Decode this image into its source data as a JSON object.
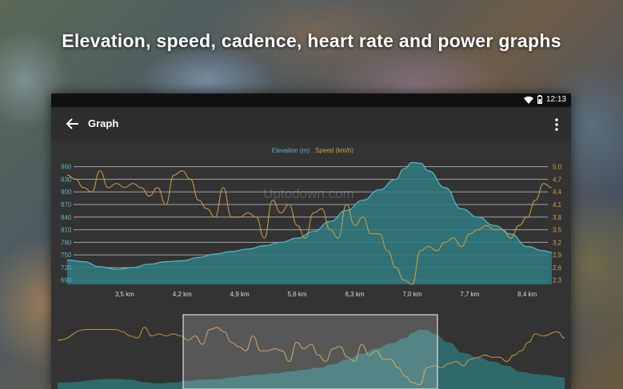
{
  "headline": "Elevation, speed, cadence, heart rate and power graphs",
  "status": {
    "time": "12:13"
  },
  "appbar": {
    "title": "Graph"
  },
  "watermark": "Uptodown.com",
  "colors": {
    "elevation": "#5bb8c6",
    "speed": "#d6a040",
    "fill": "#2f7c80"
  },
  "chart_data": {
    "type": "line",
    "legend": [
      "Elevation (m)",
      "Speed (km/h)"
    ],
    "x_ticks": [
      "3,5 km",
      "4,2 km",
      "4,9 km",
      "5,6 km",
      "6,3 km",
      "7,0 km",
      "7,7 km",
      "8,4 km"
    ],
    "y_left_ticks": [
      "960",
      "930",
      "900",
      "870",
      "840",
      "810",
      "780",
      "750",
      "720",
      "690"
    ],
    "y_right_ticks": [
      "5,0",
      "4,7",
      "4,4",
      "4,1",
      "3,8",
      "3,5",
      "3,2",
      "2,9",
      "2,6",
      "2,3"
    ],
    "xlim_km": [
      2.8,
      8.7
    ],
    "ylim_left": [
      680,
      965
    ],
    "ylim_right": [
      2.2,
      5.05
    ],
    "series": [
      {
        "name": "Elevation (m)",
        "x": [
          2.8,
          3.0,
          3.2,
          3.4,
          3.6,
          3.8,
          4.0,
          4.2,
          4.4,
          4.6,
          4.8,
          5.0,
          5.2,
          5.4,
          5.6,
          5.8,
          6.0,
          6.2,
          6.4,
          6.6,
          6.8,
          6.9,
          7.0,
          7.1,
          7.2,
          7.4,
          7.6,
          7.8,
          8.0,
          8.2,
          8.4,
          8.6,
          8.7
        ],
        "values": [
          738,
          734,
          722,
          716,
          720,
          728,
          734,
          736,
          744,
          752,
          758,
          764,
          772,
          780,
          790,
          806,
          830,
          856,
          880,
          905,
          930,
          955,
          970,
          968,
          950,
          910,
          860,
          840,
          820,
          800,
          770,
          760,
          756
        ]
      },
      {
        "name": "Speed (km/h)",
        "x": [
          2.8,
          2.9,
          3.0,
          3.1,
          3.2,
          3.3,
          3.4,
          3.5,
          3.6,
          3.7,
          3.8,
          3.9,
          4.0,
          4.1,
          4.2,
          4.3,
          4.4,
          4.5,
          4.6,
          4.7,
          4.8,
          4.9,
          5.0,
          5.1,
          5.2,
          5.3,
          5.4,
          5.5,
          5.6,
          5.7,
          5.8,
          5.9,
          6.0,
          6.1,
          6.2,
          6.3,
          6.4,
          6.5,
          6.6,
          6.7,
          6.8,
          6.9,
          7.0,
          7.1,
          7.2,
          7.3,
          7.4,
          7.5,
          7.6,
          7.7,
          7.8,
          7.9,
          8.0,
          8.1,
          8.2,
          8.3,
          8.4,
          8.5,
          8.6,
          8.7
        ],
        "values": [
          4.8,
          4.7,
          4.5,
          4.4,
          4.9,
          4.5,
          4.6,
          4.5,
          4.6,
          4.5,
          4.3,
          4.5,
          4.1,
          4.8,
          4.9,
          4.7,
          4.2,
          4.0,
          3.8,
          4.5,
          3.8,
          3.8,
          3.9,
          3.8,
          3.3,
          4.2,
          3.9,
          4.1,
          3.6,
          3.3,
          3.9,
          4.0,
          3.5,
          3.3,
          4.1,
          3.6,
          3.8,
          3.4,
          3.4,
          3.0,
          2.6,
          2.3,
          2.2,
          3.0,
          3.1,
          3.0,
          3.2,
          3.3,
          3.1,
          3.4,
          3.5,
          3.6,
          3.5,
          3.5,
          3.3,
          3.6,
          3.8,
          4.2,
          4.6,
          4.5
        ]
      }
    ]
  }
}
